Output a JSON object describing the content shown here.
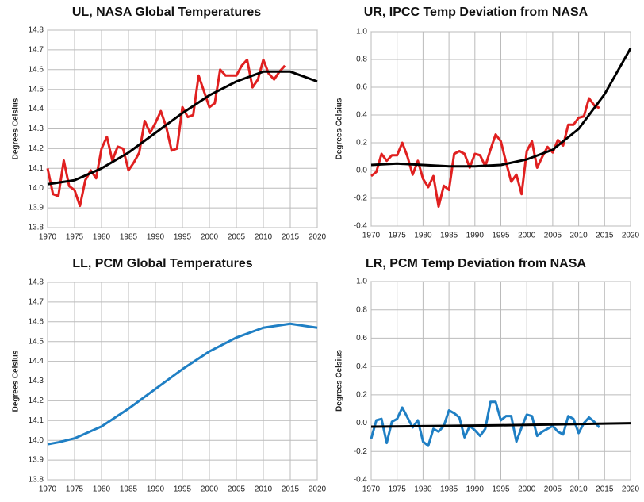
{
  "chart_data": [
    {
      "type": "line",
      "title": "UL, NASA Global Temperatures",
      "y_label": "Degrees Celsius",
      "xlim": [
        1970,
        2020
      ],
      "xticks": [
        1970,
        1975,
        1980,
        1985,
        1990,
        1995,
        2000,
        2005,
        2010,
        2015,
        2020
      ],
      "ylim": [
        13.8,
        14.8
      ],
      "yticks": [
        13.8,
        13.9,
        {
          "value": 14,
          "label": "14.0"
        },
        14.1,
        14.2,
        14.3,
        14.4,
        14.5,
        14.6,
        14.7,
        14.8
      ],
      "grid": true,
      "series": [
        {
          "color": "#e02020",
          "x": [
            1970,
            1971,
            1972,
            1973,
            1974,
            1975,
            1976,
            1977,
            1978,
            1979,
            1980,
            1981,
            1982,
            1983,
            1984,
            1985,
            1986,
            1987,
            1988,
            1989,
            1990,
            1991,
            1992,
            1993,
            1994,
            1995,
            1996,
            1997,
            1998,
            1999,
            2000,
            2001,
            2002,
            2003,
            2004,
            2005,
            2006,
            2007,
            2008,
            2009,
            2010,
            2011,
            2012,
            2013,
            2014
          ],
          "values": [
            14.1,
            13.97,
            13.96,
            14.14,
            14.01,
            13.99,
            13.91,
            14.04,
            14.09,
            14.05,
            14.2,
            14.26,
            14.14,
            14.21,
            14.2,
            14.09,
            14.13,
            14.18,
            14.34,
            14.28,
            14.33,
            14.39,
            14.31,
            14.19,
            14.2,
            14.41,
            14.36,
            14.37,
            14.57,
            14.49,
            14.41,
            14.43,
            14.6,
            14.57,
            14.57,
            14.57,
            14.62,
            14.65,
            14.51,
            14.55,
            14.65,
            14.58,
            14.55,
            14.59,
            14.62
          ]
        },
        {
          "color": "#000000",
          "x": [
            1970,
            1975,
            1980,
            1985,
            1990,
            1995,
            2000,
            2005,
            2010,
            2015,
            2020
          ],
          "values": [
            14.02,
            14.04,
            14.1,
            14.18,
            14.28,
            14.38,
            14.47,
            14.54,
            14.59,
            14.59,
            14.54
          ]
        }
      ]
    },
    {
      "type": "line",
      "title": "UR, IPCC Temp Deviation from NASA",
      "y_label": "Degrees Celsius",
      "xlim": [
        1970,
        2020
      ],
      "xticks": [
        1970,
        1975,
        1980,
        1985,
        1990,
        1995,
        2000,
        2005,
        2010,
        2015,
        2020
      ],
      "ylim": [
        -0.4,
        1.0
      ],
      "yticks": [
        -0.4,
        -0.2,
        {
          "value": 0,
          "label": "0.0"
        },
        0.2,
        0.4,
        0.6,
        0.8,
        {
          "value": 1,
          "label": "1.0"
        }
      ],
      "grid": true,
      "series": [
        {
          "color": "#e02020",
          "x": [
            1970,
            1971,
            1972,
            1973,
            1974,
            1975,
            1976,
            1977,
            1978,
            1979,
            1980,
            1981,
            1982,
            1983,
            1984,
            1985,
            1986,
            1987,
            1988,
            1989,
            1990,
            1991,
            1992,
            1993,
            1994,
            1995,
            1996,
            1997,
            1998,
            1999,
            2000,
            2001,
            2002,
            2003,
            2004,
            2005,
            2006,
            2007,
            2008,
            2009,
            2010,
            2011,
            2012,
            2013,
            2014
          ],
          "values": [
            -0.04,
            -0.01,
            0.12,
            0.07,
            0.11,
            0.11,
            0.2,
            0.1,
            -0.03,
            0.07,
            -0.06,
            -0.12,
            -0.04,
            -0.26,
            -0.11,
            -0.14,
            0.12,
            0.14,
            0.12,
            0.02,
            0.12,
            0.11,
            0.03,
            0.15,
            0.26,
            0.21,
            0.06,
            -0.08,
            -0.03,
            -0.17,
            0.14,
            0.21,
            0.02,
            0.1,
            0.17,
            0.13,
            0.22,
            0.18,
            0.33,
            0.33,
            0.38,
            0.39,
            0.52,
            0.47,
            0.45
          ]
        },
        {
          "color": "#000000",
          "x": [
            1970,
            1975,
            1980,
            1985,
            1990,
            1995,
            2000,
            2005,
            2010,
            2015,
            2020
          ],
          "values": [
            0.04,
            0.05,
            0.04,
            0.03,
            0.03,
            0.04,
            0.08,
            0.15,
            0.3,
            0.55,
            0.88
          ]
        }
      ]
    },
    {
      "type": "line",
      "title": "LL, PCM Global Temperatures",
      "y_label": "Degrees Celsius",
      "xlim": [
        1970,
        2020
      ],
      "xticks": [
        1970,
        1975,
        1980,
        1985,
        1990,
        1995,
        2000,
        2005,
        2010,
        2015,
        2020
      ],
      "ylim": [
        13.8,
        14.8
      ],
      "yticks": [
        13.8,
        13.9,
        {
          "value": 14,
          "label": "14.0"
        },
        14.1,
        14.2,
        14.3,
        14.4,
        14.5,
        14.6,
        14.7,
        14.8
      ],
      "grid": true,
      "series": [
        {
          "color": "#1f7fc4",
          "x": [
            1970,
            1972,
            1975,
            1980,
            1985,
            1990,
            1995,
            2000,
            2005,
            2010,
            2015,
            2020
          ],
          "values": [
            13.98,
            13.99,
            14.01,
            14.07,
            14.16,
            14.26,
            14.36,
            14.45,
            14.52,
            14.57,
            14.59,
            14.57
          ]
        }
      ]
    },
    {
      "type": "line",
      "title": "LR, PCM Temp Deviation from NASA",
      "y_label": "Degrees Celsius",
      "xlim": [
        1970,
        2020
      ],
      "xticks": [
        1970,
        1975,
        1980,
        1985,
        1990,
        1995,
        2000,
        2005,
        2010,
        2015,
        2020
      ],
      "ylim": [
        -0.4,
        1.0
      ],
      "yticks": [
        -0.4,
        -0.2,
        {
          "value": 0,
          "label": "0.0"
        },
        0.2,
        0.4,
        0.6,
        0.8,
        {
          "value": 1,
          "label": "1.0"
        }
      ],
      "grid": true,
      "series": [
        {
          "color": "#1f7fc4",
          "x": [
            1970,
            1971,
            1972,
            1973,
            1974,
            1975,
            1976,
            1977,
            1978,
            1979,
            1980,
            1981,
            1982,
            1983,
            1984,
            1985,
            1986,
            1987,
            1988,
            1989,
            1990,
            1991,
            1992,
            1993,
            1994,
            1995,
            1996,
            1997,
            1998,
            1999,
            2000,
            2001,
            2002,
            2003,
            2004,
            2005,
            2006,
            2007,
            2008,
            2009,
            2010,
            2011,
            2012,
            2013,
            2014
          ],
          "values": [
            -0.11,
            0.02,
            0.03,
            -0.14,
            0.01,
            0.03,
            0.11,
            0.04,
            -0.03,
            0.02,
            -0.13,
            -0.16,
            -0.04,
            -0.06,
            -0.02,
            0.09,
            0.07,
            0.04,
            -0.1,
            -0.02,
            -0.05,
            -0.09,
            -0.04,
            0.15,
            0.15,
            0.02,
            0.05,
            0.05,
            -0.13,
            -0.03,
            0.06,
            0.05,
            -0.09,
            -0.06,
            -0.04,
            -0.02,
            -0.06,
            -0.08,
            0.05,
            0.03,
            -0.07,
            0.0,
            0.04,
            0.01,
            -0.03
          ]
        },
        {
          "color": "#000000",
          "x": [
            1970,
            1995,
            2020
          ],
          "values": [
            -0.025,
            -0.015,
            0.0
          ]
        }
      ]
    }
  ]
}
